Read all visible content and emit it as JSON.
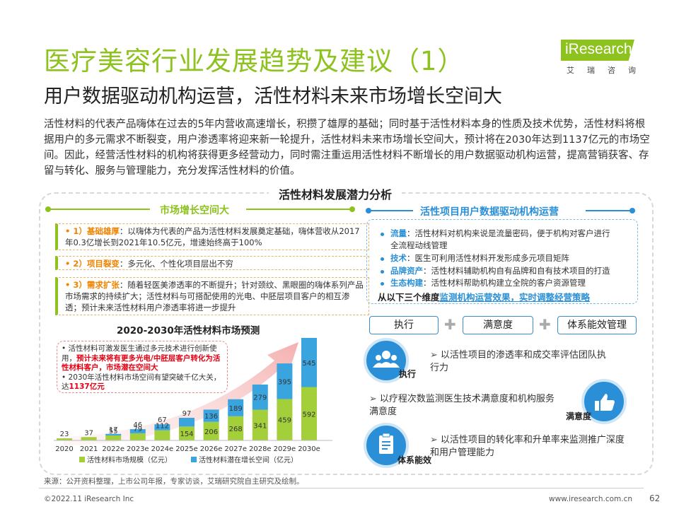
{
  "header": {
    "title": "医疗美容行业发展趋势及建议（1）",
    "subtitle": "用户数据驱动机构运营，活性材料未来市场增长空间大",
    "logo_brand": "iResearch",
    "logo_cn": "艾瑞咨询"
  },
  "intro": "活性材料的代表产品嗨体在过去的5年内营收高速增长，积攒了雄厚的基础；同时基于活性材料本身的性质及技术优势，活性材料将根据用户的多元需求不断裂变，用户渗透率将迎来新一轮提升，活性材料未来市场增长空间大，预计将在2030年达到1137亿元的市场空间。因此，经营活性材料的机构将获得更多经营动力，同时需注重运用活性材料不断增长的用户数据驱动机构运营，提高营销获客、存留与转化、服务与管理能力，充分发挥活性材料的价值。",
  "analysis_title": "活性材料发展潜力分析",
  "left": {
    "heading": "市场增长空间大",
    "points": [
      {
        "key": "• 1）基础雄厚",
        "text": "：以嗨体为代表的产品为活性材料发展奠定基础，嗨体营收从2017年0.3亿增长到2021年10.5亿元，增速始终高于100%"
      },
      {
        "key": "• 2）项目裂变",
        "text": "：多元化、个性化项目层出不穷"
      },
      {
        "key": "• 3）需求扩张",
        "text": "：随着轻医美渗透率的不断提升；针对颈纹、黑眼圈的嗨体系列产品市场需求的持续扩大；活性材料与可搭配使用的光电、中胚层项目客户的相互渗透；预计未来活性材料用户渗透率将进一步提升"
      }
    ],
    "chart_title": "2020-2030年活性材料市场预测",
    "callout": [
      {
        "plain": "活性材料可激发医生通过多元技术进行创新使用，",
        "red": "预计未来将有更多光电/中胚层客户转化为活性材料客户，市场潜在空间大"
      },
      {
        "plain": "2030年活性材料市场空间有望突破千亿大关，达",
        "red": "1137亿元"
      }
    ]
  },
  "chart_data": {
    "type": "bar",
    "title": "2020-2030年活性材料市场预测",
    "categories": [
      "2020",
      "2021",
      "2022e",
      "2023e",
      "2024e",
      "2025e",
      "2026e",
      "2027e",
      "2028e",
      "2029e",
      "2030e"
    ],
    "series": [
      {
        "name": "活性材料市场规模（亿元）",
        "color": "#a3cf3a",
        "values": [
          23,
          37,
          55,
          79,
          112,
          154,
          206,
          268,
          341,
          459,
          592
        ]
      },
      {
        "name": "活性材料潜在增长空间（亿元）",
        "color": "#3aa4df",
        "values": [
          null,
          null,
          17,
          46,
          67,
          97,
          136,
          189,
          279,
          395,
          545
        ]
      }
    ],
    "legend_position": "bottom",
    "grid": false
  },
  "right": {
    "heading": "活性项目用户数据驱动机构运营",
    "dims": [
      {
        "key": "流量",
        "text": "：活性材料对机构来说是流量密码，便于机构对客户进行"
      },
      {
        "key": "",
        "text": "全流程动线管理"
      },
      {
        "key": "技术",
        "text": "：医生可利用活性材料开发形成多元项目矩阵"
      },
      {
        "key": "品牌资产",
        "text": "：活性材料辅助机构自有品牌和自有技术项目的打造"
      },
      {
        "key": "生态构建",
        "text": "：活性材料帮助机构建立全院的客户资源管理"
      }
    ],
    "summary_plain": "从以下三个维度",
    "summary_blue": "监测机构运营效果，实时调整经营策略",
    "pills": [
      "执行",
      "满意度",
      "体系能效管理"
    ],
    "features": [
      {
        "label": "执行",
        "text": "以活性项目的渗透率和成交率评估团队执行力"
      },
      {
        "label": "满意度",
        "text": "以疗程次数监测医生技术满意度和机构服务满意度"
      },
      {
        "label": "体系能效",
        "text": "以活性项目的转化率和升单率来监测推广深度和用户管理能力"
      }
    ]
  },
  "footer": {
    "source": "来源：公开资料整理，上市公司年报，专家访谈，艾瑞研究院自主研究及绘制。",
    "copyright": "©2022.11 iResearch Inc",
    "site": "www.iresearch.com.cn",
    "page": "62"
  },
  "colors": {
    "brand_green": "#8dc21f",
    "accent_blue": "#2a8fd6",
    "orange": "#f08300",
    "red": "#e60012"
  }
}
